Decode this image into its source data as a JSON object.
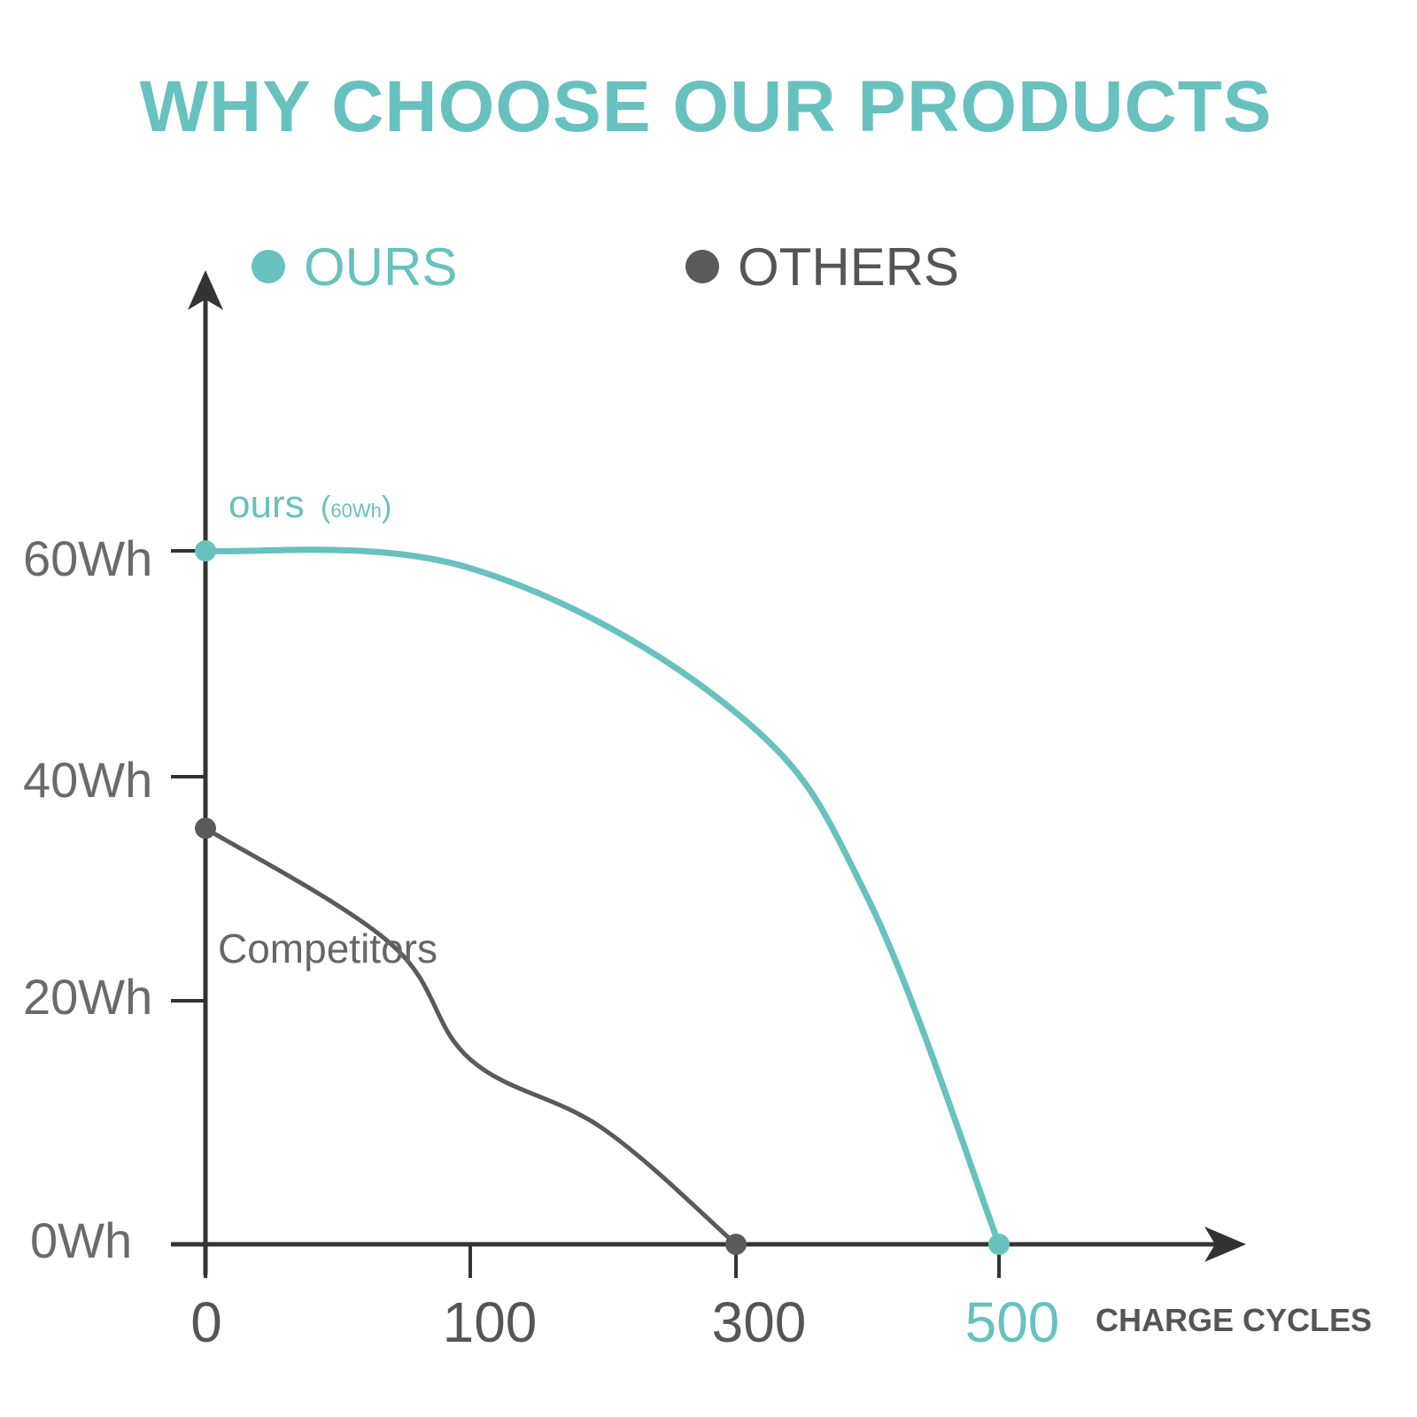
{
  "title": "WHY CHOOSE OUR PRODUCTS",
  "colors": {
    "ours": "#67c1bf",
    "others": "#5a5a5a",
    "axis": "#333333",
    "grid": "#d8d8d8"
  },
  "chart_data": {
    "type": "line",
    "title": "WHY CHOOSE OUR PRODUCTS",
    "xlabel": "CHARGE CYCLES",
    "ylabel": "",
    "x_ticks": [
      "0",
      "100",
      "300",
      "500"
    ],
    "y_ticks": [
      "60Wh",
      "40Wh",
      "20Wh",
      "0Wh"
    ],
    "y_tick_values": [
      60,
      40,
      20,
      0
    ],
    "ylim": [
      0,
      60
    ],
    "grid": true,
    "legend_position": "top",
    "legend": [
      "OURS",
      "OTHERS"
    ],
    "series": [
      {
        "name": "OURS",
        "color": "#67c1bf",
        "points": [
          {
            "x": 0,
            "y": 60
          },
          {
            "x": 100,
            "y": 58.5
          },
          {
            "x": 300,
            "y": 46
          },
          {
            "x": 400,
            "y": 30
          },
          {
            "x": 500,
            "y": 0
          }
        ]
      },
      {
        "name": "OTHERS",
        "color": "#5a5a5a",
        "points": [
          {
            "x": 0,
            "y": 36
          },
          {
            "x": 70,
            "y": 26
          },
          {
            "x": 100,
            "y": 16
          },
          {
            "x": 200,
            "y": 10
          },
          {
            "x": 300,
            "y": 0
          }
        ]
      }
    ],
    "annotations": {
      "ours_label": "ours",
      "ours_sub": "60Wh",
      "others_label": "Competitors"
    }
  }
}
